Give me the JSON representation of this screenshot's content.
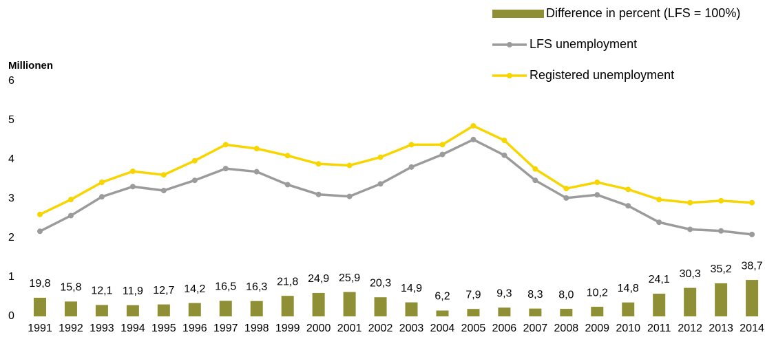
{
  "chart_data": {
    "type": "bar-line",
    "y_axis_title": "Millionen",
    "categories": [
      "1991",
      "1992",
      "1993",
      "1994",
      "1995",
      "1996",
      "1997",
      "1998",
      "1999",
      "2000",
      "2001",
      "2002",
      "2003",
      "2004",
      "2005",
      "2006",
      "2007",
      "2008",
      "2009",
      "2010",
      "2011",
      "2012",
      "2013",
      "2014"
    ],
    "ylim": [
      0,
      6
    ],
    "yticks": [
      0,
      1,
      2,
      3,
      4,
      5,
      6
    ],
    "y2lim": [
      0,
      250
    ],
    "series": [
      {
        "name": "Difference in percent (LFS = 100%)",
        "type": "bar",
        "axis": "y2",
        "color": "#8f8f36",
        "values": [
          19.8,
          15.8,
          12.1,
          11.9,
          12.7,
          14.2,
          16.5,
          16.3,
          21.8,
          24.9,
          25.9,
          20.3,
          14.9,
          6.2,
          7.9,
          9.3,
          8.3,
          8.0,
          10.2,
          14.8,
          24.1,
          30.3,
          35.2,
          38.7
        ],
        "value_labels": [
          "19,8",
          "15,8",
          "12,1",
          "11,9",
          "12,7",
          "14,2",
          "16,5",
          "16,3",
          "21,8",
          "24,9",
          "25,9",
          "20,3",
          "14,9",
          "6,2",
          "7,9",
          "9,3",
          "8,3",
          "8,0",
          "10,2",
          "14,8",
          "24,1",
          "30,3",
          "35,2",
          "38,7"
        ]
      },
      {
        "name": "LFS unemployment",
        "type": "line",
        "color": "#9b9b9b",
        "values": [
          2.17,
          2.57,
          3.05,
          3.31,
          3.21,
          3.47,
          3.77,
          3.69,
          3.36,
          3.11,
          3.06,
          3.38,
          3.81,
          4.13,
          4.51,
          4.11,
          3.47,
          3.02,
          3.1,
          2.82,
          2.4,
          2.22,
          2.18,
          2.09
        ]
      },
      {
        "name": "Registered unemployment",
        "type": "line",
        "color": "#f7d500",
        "values": [
          2.6,
          2.98,
          3.42,
          3.7,
          3.61,
          3.97,
          4.38,
          4.28,
          4.1,
          3.89,
          3.85,
          4.06,
          4.38,
          4.38,
          4.86,
          4.49,
          3.76,
          3.26,
          3.42,
          3.24,
          2.98,
          2.9,
          2.95,
          2.9
        ]
      }
    ]
  }
}
